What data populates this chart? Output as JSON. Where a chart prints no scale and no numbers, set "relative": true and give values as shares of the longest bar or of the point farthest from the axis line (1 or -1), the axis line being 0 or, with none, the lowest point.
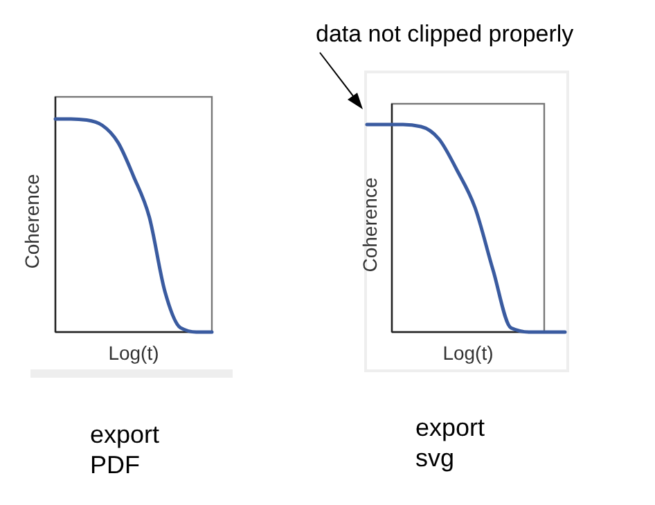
{
  "chart_data": [
    {
      "type": "line",
      "relative": true,
      "xlabel": "Log(t)",
      "ylabel": "Coherence",
      "categories": [
        null,
        null,
        null,
        null,
        null,
        null,
        null,
        null,
        null,
        null,
        null
      ],
      "series": [
        {
          "color": "#3a5ba0",
          "values": [
            1,
            1,
            0.995,
            0.97,
            0.89,
            0.73,
            0.54,
            0.19,
            0.02,
            0,
            0
          ]
        }
      ],
      "annotations": [
        "export PDF"
      ]
    },
    {
      "type": "line",
      "relative": true,
      "xlabel": "Log(t)",
      "ylabel": "Coherence",
      "categories": [
        null,
        null,
        null,
        null,
        null,
        null,
        null,
        null,
        null,
        null,
        null,
        null
      ],
      "series": [
        {
          "color": "#3a5ba0",
          "values": [
            1,
            1,
            1,
            0.99,
            0.93,
            0.78,
            0.6,
            0.3,
            0.02,
            0,
            0,
            0
          ]
        }
      ],
      "annotations": [
        "export svg",
        "data not clipped properly"
      ]
    }
  ]
}
